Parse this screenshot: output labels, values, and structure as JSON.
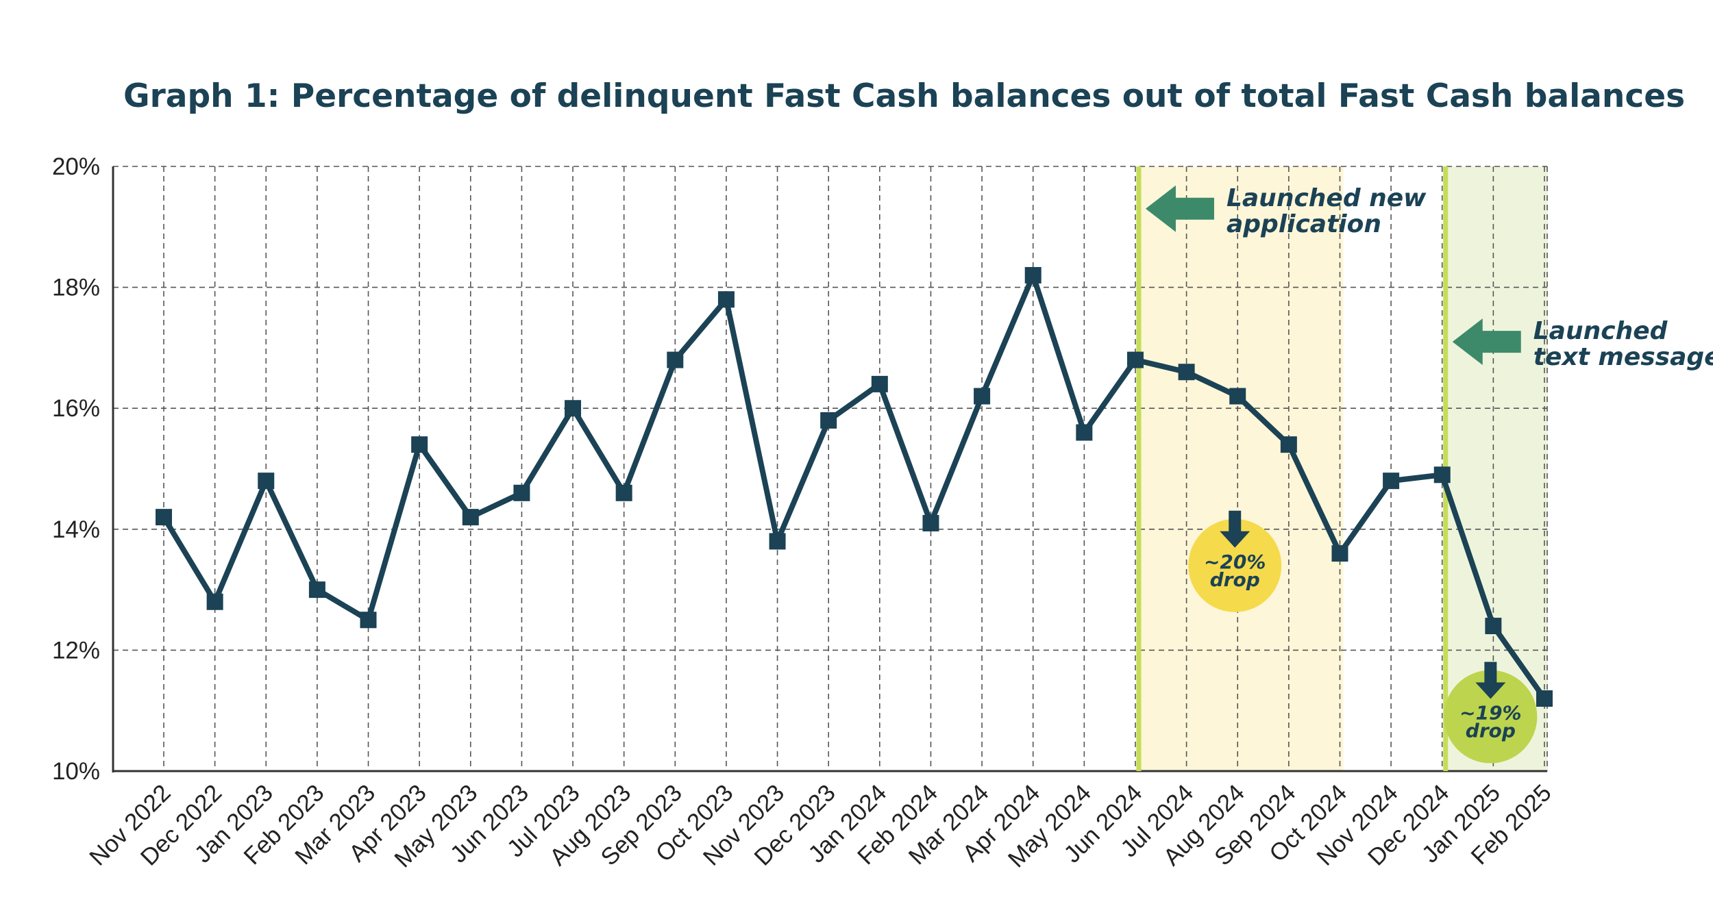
{
  "chart_data": {
    "type": "line",
    "title": "Graph 1: Percentage of delinquent Fast Cash balances out of total Fast Cash balances",
    "xlabel": "",
    "ylabel": "",
    "ylim": [
      10,
      20
    ],
    "yticks": [
      10,
      12,
      14,
      16,
      18,
      20
    ],
    "ytick_labels": [
      "10%",
      "12%",
      "14%",
      "16%",
      "18%",
      "20%"
    ],
    "grid": true,
    "categories": [
      "Nov 2022",
      "Dec 2022",
      "Jan 2023",
      "Feb 2023",
      "Mar 2023",
      "Apr 2023",
      "May 2023",
      "Jun 2023",
      "Jul 2023",
      "Aug 2023",
      "Sep 2023",
      "Oct 2023",
      "Nov 2023",
      "Dec 2023",
      "Jan 2024",
      "Feb 2024",
      "Mar 2024",
      "Apr 2024",
      "May 2024",
      "Jun 2024",
      "Jul 2024",
      "Aug 2024",
      "Sep 2024",
      "Oct 2024",
      "Nov 2024",
      "Dec 2024",
      "Jan 2025",
      "Feb 2025"
    ],
    "series": [
      {
        "name": "Delinquent Fast Cash balances (%)",
        "color": "#1b4255",
        "values": [
          14.2,
          12.8,
          14.8,
          13.0,
          12.5,
          15.4,
          14.2,
          14.6,
          16.0,
          14.6,
          16.8,
          17.8,
          13.8,
          15.8,
          16.4,
          14.1,
          16.2,
          18.2,
          15.6,
          16.8,
          16.6,
          16.2,
          15.4,
          13.6,
          14.8,
          14.9,
          12.4,
          11.2
        ]
      }
    ],
    "shaded_regions": [
      {
        "name": "application-period",
        "start": "Jun 2024",
        "end": "Oct 2024",
        "color": "#fdf6d8"
      },
      {
        "name": "text-message-period",
        "start": "Dec 2024",
        "end": "Feb 2025",
        "color": "#eef4dc"
      }
    ],
    "event_lines": [
      {
        "name": "launched-new-application",
        "at": "Jun 2024",
        "color": "#c5dd57"
      },
      {
        "name": "launched-text-messages",
        "at": "Dec 2024",
        "color": "#c5dd57"
      }
    ],
    "annotations": [
      {
        "name": "new-application",
        "lines": [
          "Launched new",
          "application"
        ],
        "at": "Jun 2024",
        "y": 19.3,
        "arrow_color": "#3d8a6b"
      },
      {
        "name": "text-messages",
        "lines": [
          "Launched",
          "text messages"
        ],
        "at": "Dec 2024",
        "y": 17.1,
        "arrow_color": "#3d8a6b"
      }
    ],
    "badges": [
      {
        "name": "drop-20",
        "lines": [
          "~20%",
          "drop"
        ],
        "at": "Aug 2024",
        "y": 13.4,
        "color": "#f5da4c"
      },
      {
        "name": "drop-19",
        "lines": [
          "~19%",
          "drop"
        ],
        "at": "Jan 2025",
        "y": 10.9,
        "color": "#bdd44e"
      }
    ]
  }
}
